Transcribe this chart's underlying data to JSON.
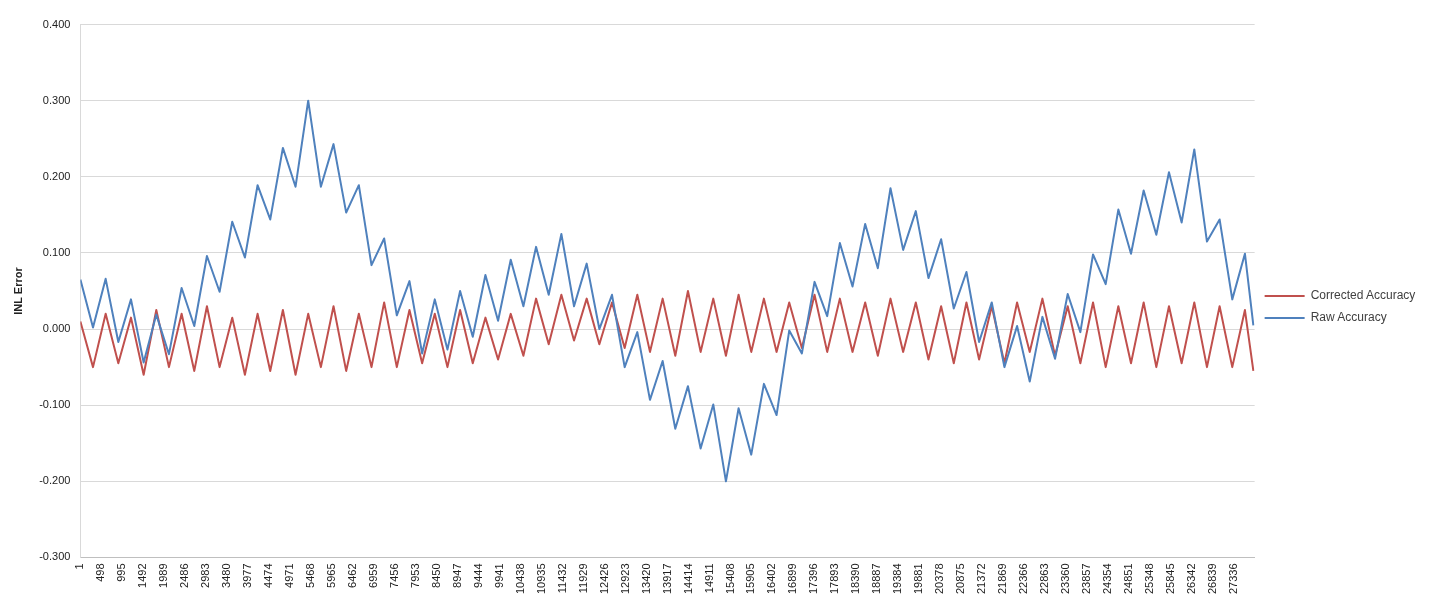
{
  "chart_data": {
    "type": "line",
    "ylabel": "INL Error",
    "legend": "right",
    "grid": "y",
    "xlim": [
      1,
      27830
    ],
    "xticks": [
      1,
      498,
      995,
      1492,
      1989,
      2486,
      2983,
      3480,
      3977,
      4474,
      4971,
      5468,
      5965,
      6462,
      6959,
      7456,
      7953,
      8450,
      8947,
      9444,
      9941,
      10438,
      10935,
      11432,
      11929,
      12426,
      12923,
      13420,
      13917,
      14414,
      14911,
      15408,
      15905,
      16402,
      16899,
      17396,
      17893,
      18390,
      18887,
      19384,
      19881,
      20378,
      20875,
      21372,
      21869,
      22366,
      22863,
      23360,
      23857,
      24354,
      24851,
      25348,
      25845,
      26342,
      26839,
      27336
    ],
    "ylim": [
      -0.3,
      0.4
    ],
    "yticks": [
      {
        "value": -0.3,
        "label": "-0.300"
      },
      {
        "value": -0.2,
        "label": "-0.200"
      },
      {
        "value": -0.1,
        "label": "-0.100"
      },
      {
        "value": 0,
        "label": "0.000"
      },
      {
        "value": 0.1,
        "label": "0.100"
      },
      {
        "value": 0.2,
        "label": "0.200"
      },
      {
        "value": 0.3,
        "label": "0.300"
      },
      {
        "value": 0.4,
        "label": "0.400"
      }
    ],
    "x": [
      1,
      300,
      600,
      900,
      1200,
      1500,
      1800,
      2100,
      2400,
      2700,
      3000,
      3300,
      3600,
      3900,
      4200,
      4500,
      4800,
      5100,
      5400,
      5700,
      6000,
      6300,
      6600,
      6900,
      7200,
      7500,
      7800,
      8100,
      8400,
      8700,
      9000,
      9300,
      9600,
      9900,
      10200,
      10500,
      10800,
      11100,
      11400,
      11700,
      12000,
      12300,
      12600,
      12900,
      13200,
      13500,
      13800,
      14100,
      14400,
      14700,
      15000,
      15300,
      15600,
      15900,
      16200,
      16500,
      16800,
      17100,
      17400,
      17700,
      18000,
      18300,
      18600,
      18900,
      19200,
      19500,
      19800,
      20100,
      20400,
      20700,
      21000,
      21300,
      21600,
      21900,
      22200,
      22500,
      22800,
      23100,
      23400,
      23700,
      24000,
      24300,
      24600,
      24900,
      25200,
      25500,
      25800,
      26100,
      26400,
      26700,
      27000,
      27300,
      27600,
      27800
    ],
    "series": [
      {
        "name": "Corrected Accuracy",
        "color": "#c0504d",
        "values": [
          0.01,
          -0.05,
          0.02,
          -0.045,
          0.015,
          -0.06,
          0.025,
          -0.05,
          0.02,
          -0.055,
          0.03,
          -0.05,
          0.015,
          -0.06,
          0.02,
          -0.055,
          0.025,
          -0.06,
          0.02,
          -0.05,
          0.03,
          -0.055,
          0.02,
          -0.05,
          0.035,
          -0.05,
          0.025,
          -0.045,
          0.02,
          -0.05,
          0.025,
          -0.045,
          0.015,
          -0.04,
          0.02,
          -0.035,
          0.04,
          -0.02,
          0.045,
          -0.015,
          0.04,
          -0.02,
          0.035,
          -0.025,
          0.045,
          -0.03,
          0.04,
          -0.035,
          0.05,
          -0.03,
          0.04,
          -0.035,
          0.045,
          -0.03,
          0.04,
          -0.03,
          0.035,
          -0.025,
          0.045,
          -0.03,
          0.04,
          -0.03,
          0.035,
          -0.035,
          0.04,
          -0.03,
          0.035,
          -0.04,
          0.03,
          -0.045,
          0.035,
          -0.04,
          0.03,
          -0.045,
          0.035,
          -0.03,
          0.04,
          -0.035,
          0.03,
          -0.045,
          0.035,
          -0.05,
          0.03,
          -0.045,
          0.035,
          -0.05,
          0.03,
          -0.045,
          0.035,
          -0.05,
          0.03,
          -0.05,
          0.025,
          -0.055
        ]
      },
      {
        "name": "Raw Accuracy",
        "color": "#4f81bd",
        "values": [
          0.065,
          0.002,
          0.066,
          -0.017,
          0.039,
          -0.044,
          0.019,
          -0.033,
          0.054,
          0.004,
          0.096,
          0.049,
          0.141,
          0.094,
          0.189,
          0.144,
          0.238,
          0.187,
          0.3,
          0.187,
          0.243,
          0.153,
          0.189,
          0.084,
          0.119,
          0.018,
          0.063,
          -0.032,
          0.039,
          -0.027,
          0.05,
          -0.01,
          0.071,
          0.011,
          0.091,
          0.03,
          0.108,
          0.045,
          0.125,
          0.03,
          0.086,
          0,
          0.045,
          -0.05,
          -0.004,
          -0.093,
          -0.042,
          -0.131,
          -0.075,
          -0.157,
          -0.099,
          -0.2,
          -0.104,
          -0.165,
          -0.072,
          -0.113,
          -0.002,
          -0.032,
          0.062,
          0.017,
          0.113,
          0.056,
          0.138,
          0.08,
          0.185,
          0.104,
          0.155,
          0.067,
          0.118,
          0.027,
          0.075,
          -0.017,
          0.035,
          -0.05,
          0.004,
          -0.069,
          0.016,
          -0.039,
          0.046,
          -0.004,
          0.098,
          0.059,
          0.157,
          0.099,
          0.182,
          0.124,
          0.206,
          0.14,
          0.236,
          0.115,
          0.144,
          0.039,
          0.099,
          0.005
        ]
      }
    ]
  }
}
